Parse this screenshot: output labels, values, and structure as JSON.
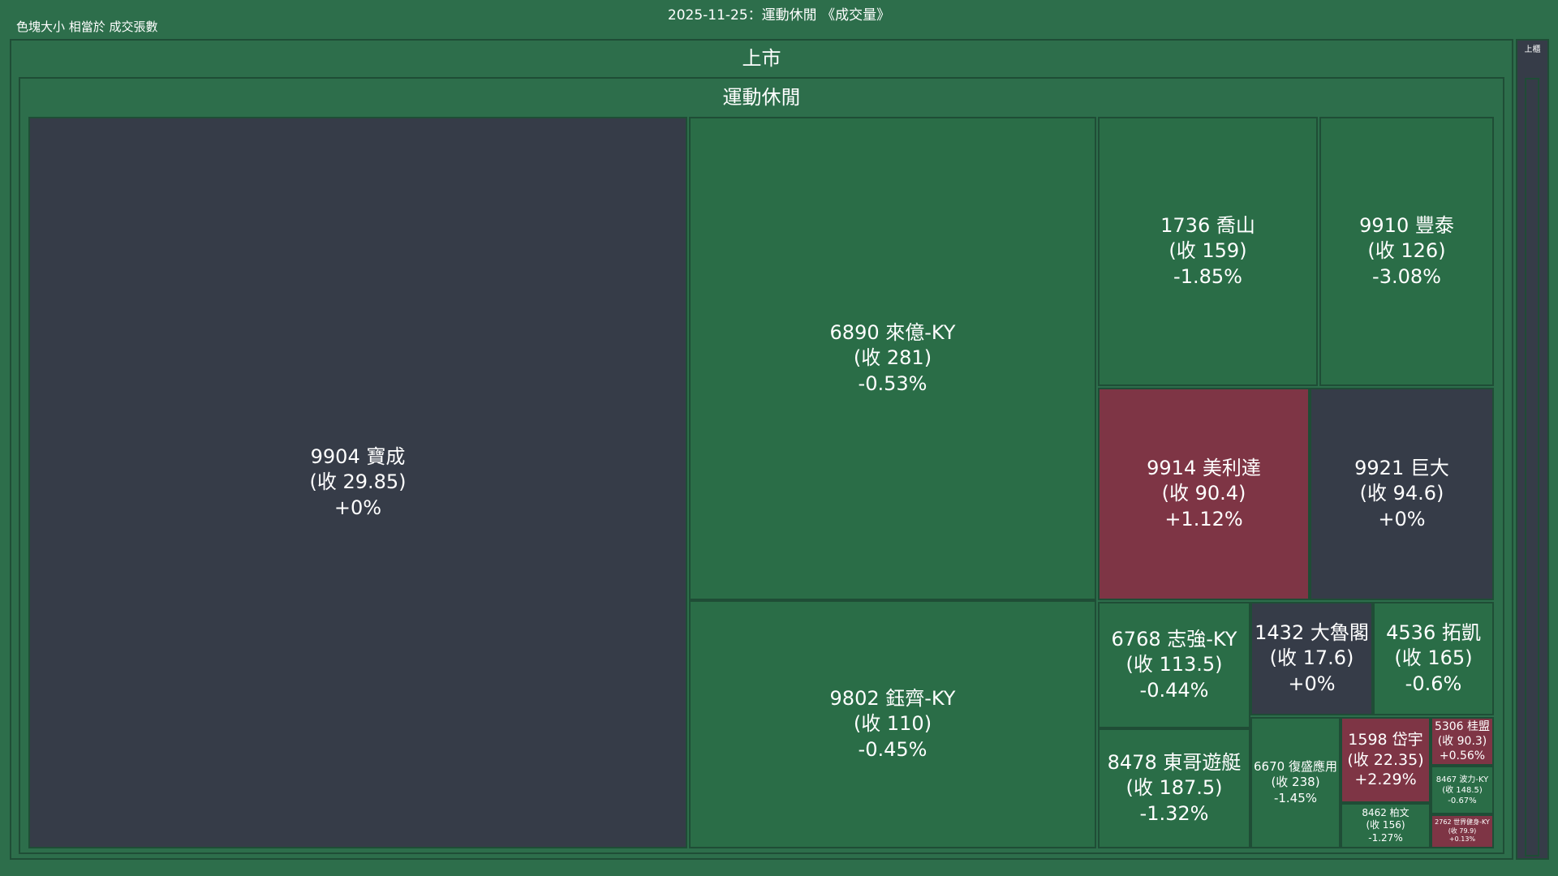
{
  "title": "2025-11-25：運動休閒 《成交量》",
  "size_note": "色塊大小 相當於 成交張數",
  "market_label": "上市",
  "sector_label": "運動休閒",
  "side_label": "上櫃",
  "colors": {
    "background": "#2d6e4b",
    "flat": "#363c48",
    "down": "#2a6d47",
    "up": "#7e3545",
    "border": "#1f4d36"
  },
  "chart_data": {
    "type": "treemap",
    "size_metric": "成交張數",
    "tiles": [
      {
        "code": "9904",
        "name": "寶成",
        "close": 29.85,
        "change_pct": 0,
        "line1": "9904 寶成",
        "line2": "(收 29.85)",
        "line3": "+0%"
      },
      {
        "code": "6890",
        "name": "來億-KY",
        "close": 281,
        "change_pct": -0.53,
        "line1": "6890 來億-KY",
        "line2": "(收 281)",
        "line3": "-0.53%"
      },
      {
        "code": "9802",
        "name": "鈺齊-KY",
        "close": 110,
        "change_pct": -0.45,
        "line1": "9802 鈺齊-KY",
        "line2": "(收 110)",
        "line3": "-0.45%"
      },
      {
        "code": "1736",
        "name": "喬山",
        "close": 159,
        "change_pct": -1.85,
        "line1": "1736 喬山",
        "line2": "(收 159)",
        "line3": "-1.85%"
      },
      {
        "code": "9910",
        "name": "豐泰",
        "close": 126,
        "change_pct": -3.08,
        "line1": "9910 豐泰",
        "line2": "(收 126)",
        "line3": "-3.08%"
      },
      {
        "code": "9914",
        "name": "美利達",
        "close": 90.4,
        "change_pct": 1.12,
        "line1": "9914 美利達",
        "line2": "(收 90.4)",
        "line3": "+1.12%"
      },
      {
        "code": "9921",
        "name": "巨大",
        "close": 94.6,
        "change_pct": 0,
        "line1": "9921 巨大",
        "line2": "(收 94.6)",
        "line3": "+0%"
      },
      {
        "code": "6768",
        "name": "志強-KY",
        "close": 113.5,
        "change_pct": -0.44,
        "line1": "6768 志強-KY",
        "line2": "(收 113.5)",
        "line3": "-0.44%"
      },
      {
        "code": "1432",
        "name": "大魯閣",
        "close": 17.6,
        "change_pct": 0,
        "line1": "1432 大魯閣",
        "line2": "(收 17.6)",
        "line3": "+0%"
      },
      {
        "code": "4536",
        "name": "拓凱",
        "close": 165,
        "change_pct": -0.6,
        "line1": "4536 拓凱",
        "line2": "(收 165)",
        "line3": "-0.6%"
      },
      {
        "code": "8478",
        "name": "東哥遊艇",
        "close": 187.5,
        "change_pct": -1.32,
        "line1": "8478 東哥遊艇",
        "line2": "(收 187.5)",
        "line3": "-1.32%"
      },
      {
        "code": "6670",
        "name": "復盛應用",
        "close": 238,
        "change_pct": -1.45,
        "line1": "6670 復盛應用",
        "line2": "(收 238)",
        "line3": "-1.45%"
      },
      {
        "code": "1598",
        "name": "岱宇",
        "close": 22.35,
        "change_pct": 2.29,
        "line1": "1598 岱宇",
        "line2": "(收 22.35)",
        "line3": "+2.29%"
      },
      {
        "code": "5306",
        "name": "桂盟",
        "close": 90.3,
        "change_pct": 0.56,
        "line1": "5306 桂盟",
        "line2": "(收 90.3)",
        "line3": "+0.56%"
      },
      {
        "code": "8467",
        "name": "波力-KY",
        "close": 148.5,
        "change_pct": -0.67,
        "line1": "8467 波力-KY",
        "line2": "(收 148.5)",
        "line3": "-0.67%"
      },
      {
        "code": "8462",
        "name": "柏文",
        "close": 156,
        "change_pct": -1.27,
        "line1": "8462 柏文",
        "line2": "(收 156)",
        "line3": "-1.27%"
      },
      {
        "code": "2762",
        "name": "世界健身-KY",
        "close": 79.9,
        "change_pct": 0.13,
        "line1": "2762 世界健身-KY",
        "line2": "(收 79.9)",
        "line3": "+0.13%"
      }
    ]
  }
}
